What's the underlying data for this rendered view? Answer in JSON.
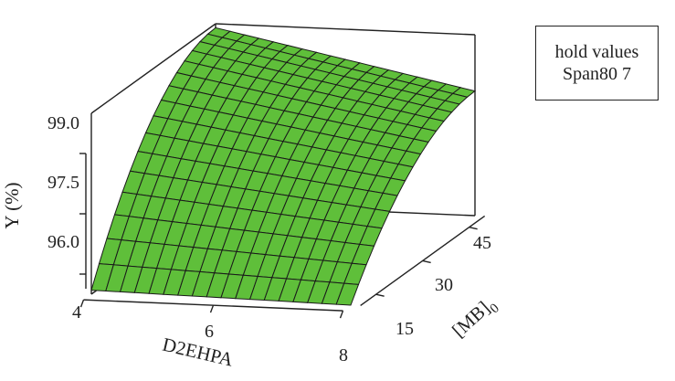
{
  "legend": {
    "line1": "hold values",
    "line2": "Span80 7"
  },
  "chart_data": {
    "type": "surface",
    "title": "",
    "xlabel": "D2EHPA",
    "ylabel": "[MB]0",
    "zlabel": "Y (%)",
    "x_range": [
      4,
      8
    ],
    "y_range": [
      10,
      50
    ],
    "z_range": [
      95.5,
      100
    ],
    "x_ticks": [
      4,
      6,
      8
    ],
    "y_ticks": [
      15,
      30,
      45
    ],
    "z_ticks": [
      "96.0",
      "97.5",
      "99.0"
    ],
    "x_tick_labels": [
      "4",
      "6",
      "8"
    ],
    "y_tick_labels": [
      "15",
      "30",
      "45"
    ],
    "z_tick_labels": [
      "96.0",
      "97.5",
      "99.0"
    ],
    "grid": false,
    "surface_color": "#5fbf3a",
    "mesh_color": "#1a1a1a",
    "hold_values": {
      "Span80": 7
    },
    "corners": {
      "x4_y10": 95.6,
      "x8_y10": 95.5,
      "x4_y50": 99.9,
      "x8_y50": 98.6
    }
  }
}
